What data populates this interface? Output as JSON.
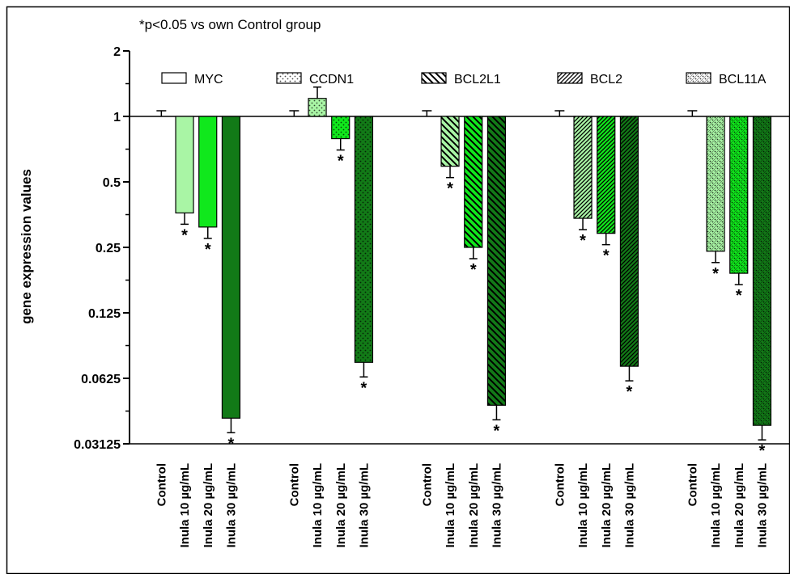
{
  "chart_data": {
    "type": "bar",
    "annotation": "*p<0.05 vs own Control group",
    "ylabel": "gene expression values",
    "y_scale": "log2",
    "baseline": 1,
    "ylim": [
      0.03125,
      2
    ],
    "yticks": [
      2,
      1,
      0.5,
      0.25,
      0.125,
      0.0625,
      0.03125
    ],
    "ytick_labels": [
      "2",
      "1",
      "0.5",
      "0.25",
      "0.125",
      "0.0625",
      "0.03125"
    ],
    "categories": [
      "Control",
      "Inula 10 µg/mL",
      "Inula 20 µg/mL",
      "Inula 30 µg/mL"
    ],
    "significance_marker": "*",
    "series": [
      {
        "name": "MYC",
        "values": [
          1,
          0.36,
          0.31,
          0.041
        ],
        "error_bars": [
          true,
          true,
          true,
          true
        ],
        "significant": [
          false,
          true,
          true,
          true
        ]
      },
      {
        "name": "CCDN1",
        "values": [
          1,
          1.21,
          0.79,
          0.074
        ],
        "error_bars": [
          true,
          true,
          true,
          true
        ],
        "significant": [
          false,
          false,
          true,
          true
        ]
      },
      {
        "name": "BCL2L1",
        "values": [
          1,
          0.59,
          0.25,
          0.047
        ],
        "error_bars": [
          true,
          true,
          true,
          true
        ],
        "significant": [
          false,
          true,
          true,
          true
        ]
      },
      {
        "name": "BCL2",
        "values": [
          1,
          0.34,
          0.29,
          0.071
        ],
        "error_bars": [
          true,
          true,
          true,
          true
        ],
        "significant": [
          false,
          true,
          true,
          true
        ]
      },
      {
        "name": "BCL11A",
        "values": [
          1,
          0.24,
          0.19,
          0.038
        ],
        "error_bars": [
          true,
          true,
          true,
          true
        ],
        "significant": [
          false,
          true,
          true,
          true
        ]
      }
    ],
    "fill_colors": [
      "#ffffff",
      "#a9f5a5",
      "#10e81c",
      "#127a17"
    ],
    "patterns": [
      "none",
      "dots",
      "backslash",
      "slash-dense",
      "cross-dots"
    ],
    "legend_placement": "top, above bars"
  }
}
